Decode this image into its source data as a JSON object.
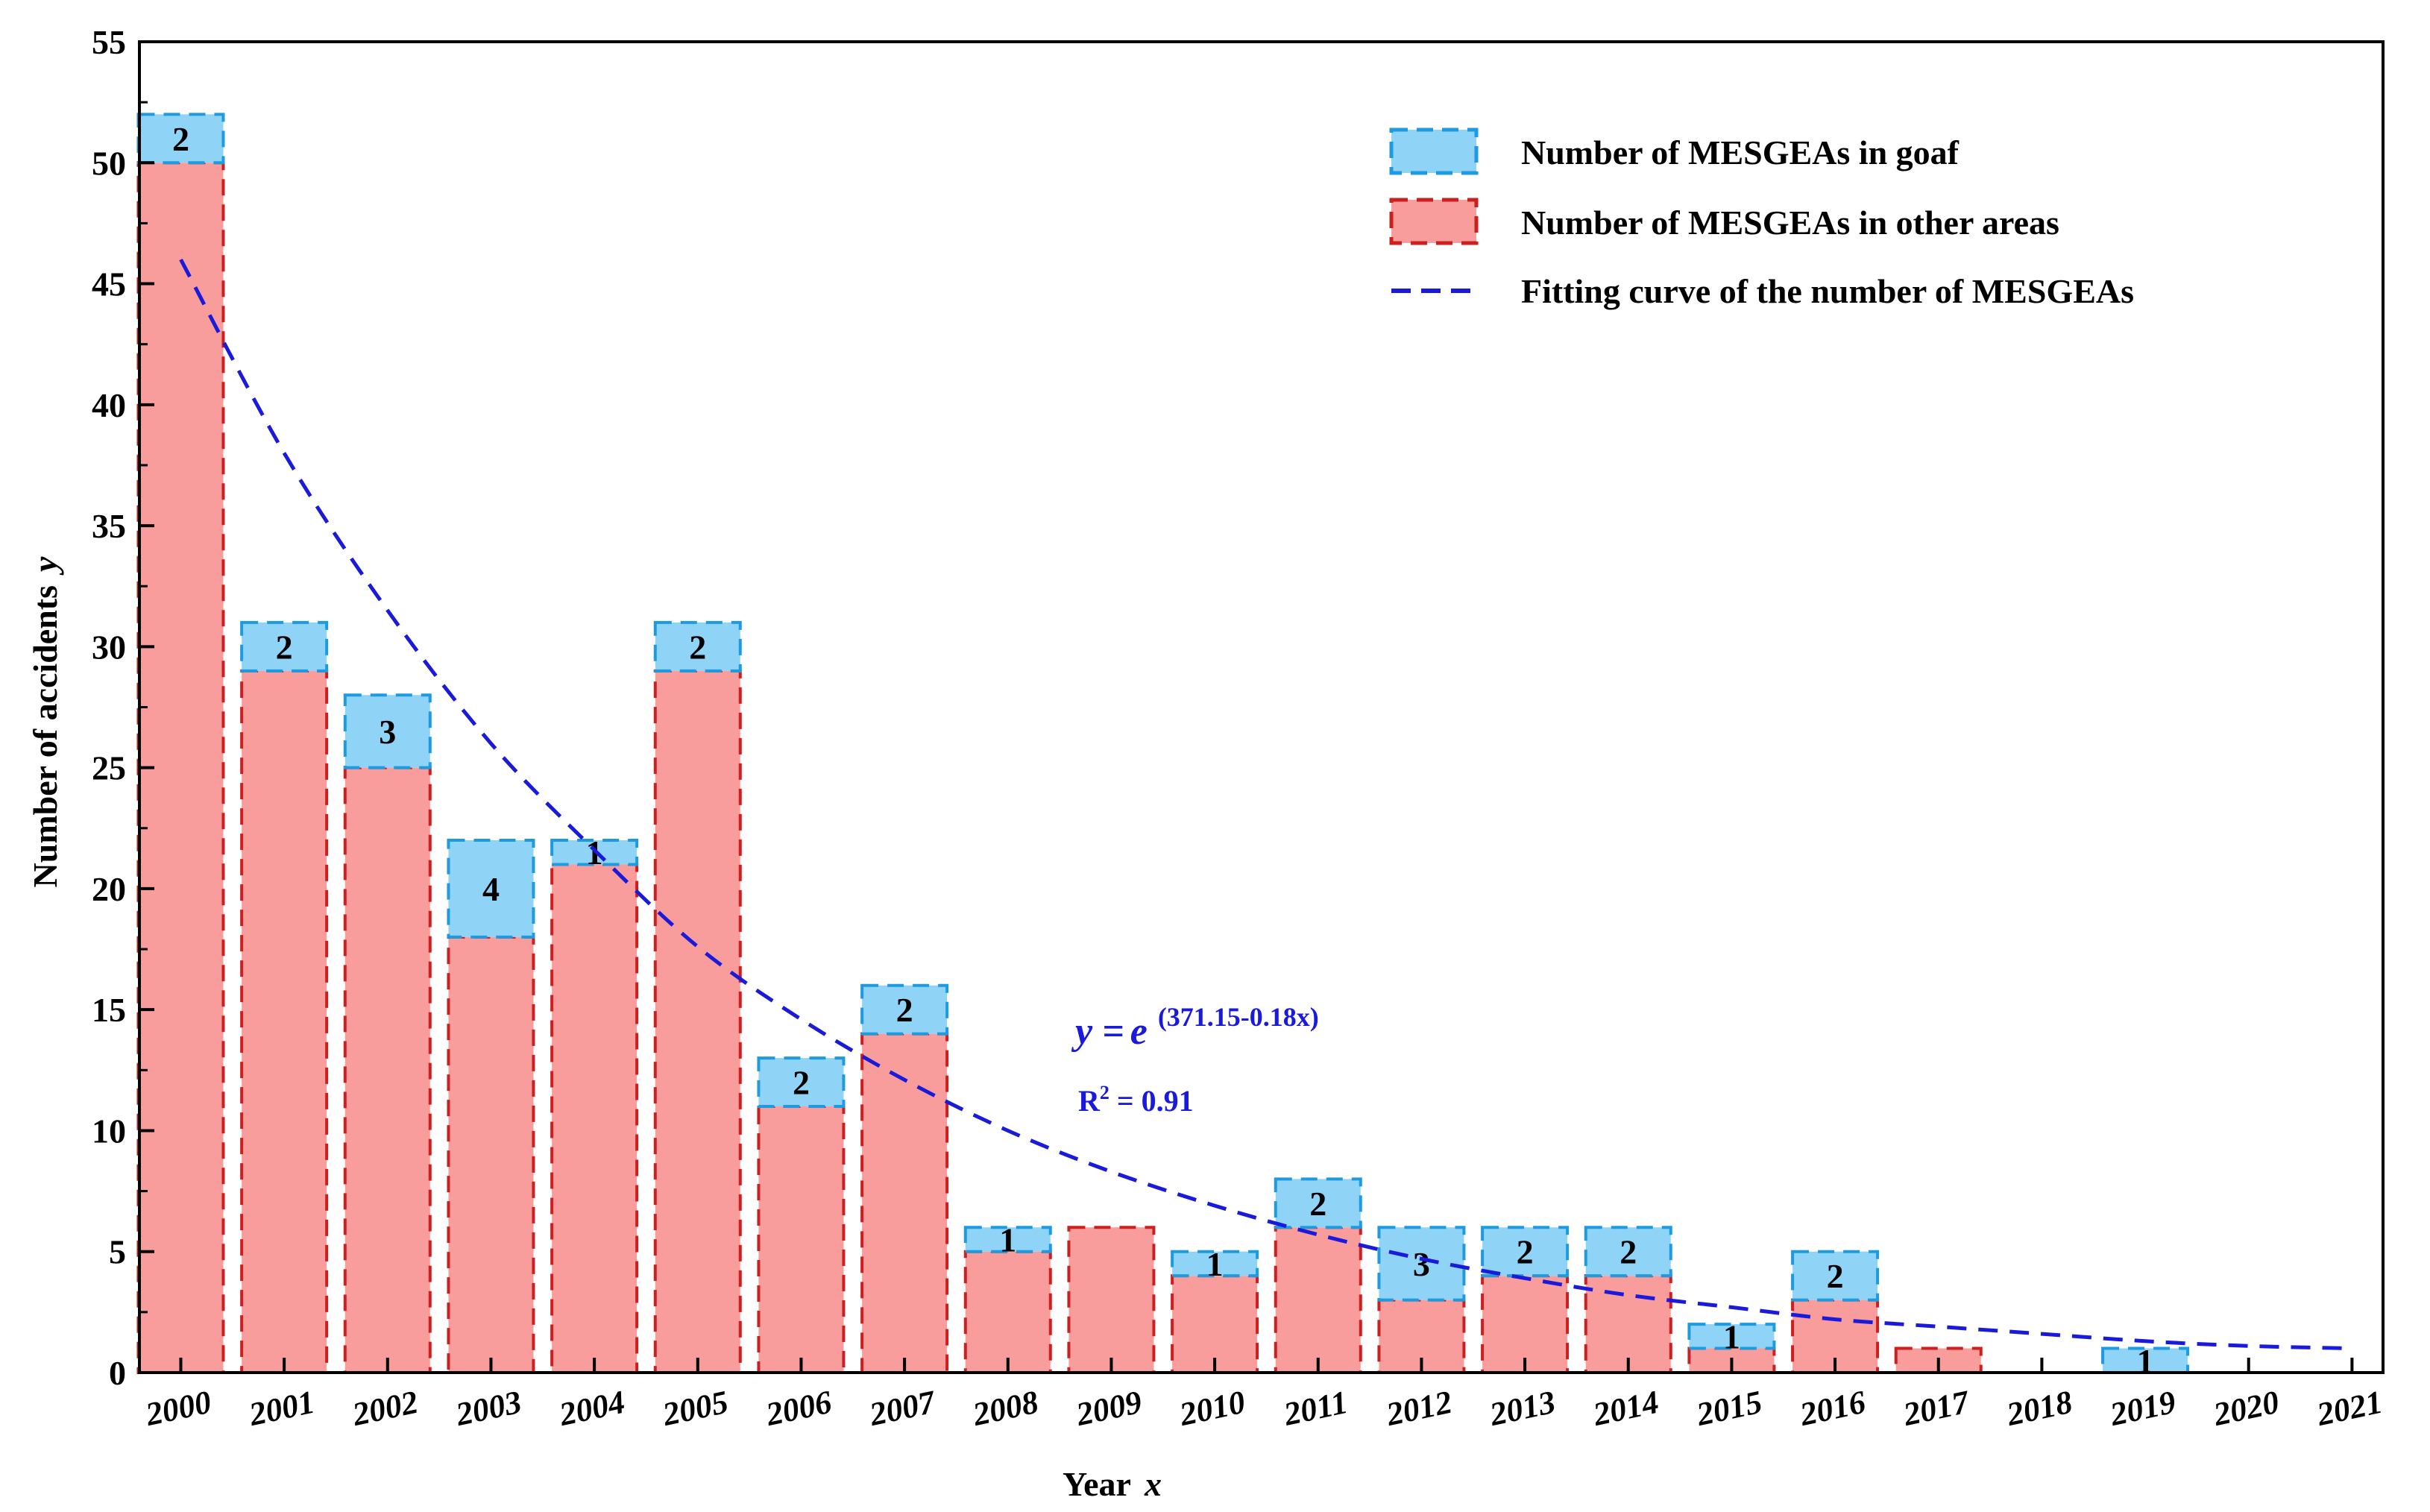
{
  "chart_data": {
    "type": "bar",
    "stacked": true,
    "categories": [
      "2000",
      "2001",
      "2002",
      "2003",
      "2004",
      "2005",
      "2006",
      "2007",
      "2008",
      "2009",
      "2010",
      "2011",
      "2012",
      "2013",
      "2014",
      "2015",
      "2016",
      "2017",
      "2018",
      "2019",
      "2020",
      "2021"
    ],
    "x_tick_labels": [
      "2000",
      "2001",
      "2002",
      "2003",
      "2004",
      "2005",
      "2006",
      "2007",
      "2008",
      "2009",
      "2010",
      "2011",
      "2012",
      "2013",
      "2014",
      "2015",
      "2016",
      "2017",
      "2018",
      "2019",
      "2020",
      "2021"
    ],
    "y_tick_labels": [
      "0",
      "5",
      "10",
      "15",
      "20",
      "25",
      "30",
      "35",
      "40",
      "45",
      "50",
      "55"
    ],
    "series": [
      {
        "name": "Number of MESGEAs in other areas",
        "values": [
          50,
          29,
          25,
          18,
          21,
          29,
          11,
          14,
          5,
          6,
          4,
          6,
          3,
          4,
          4,
          1,
          3,
          1,
          0,
          0,
          0,
          0
        ],
        "fill": "#f99c9c",
        "stroke": "#cc1f1f"
      },
      {
        "name": "Number of MESGEAs in goaf",
        "values": [
          2,
          2,
          3,
          4,
          1,
          2,
          2,
          2,
          1,
          0,
          1,
          2,
          3,
          2,
          2,
          1,
          2,
          0,
          0,
          1,
          0,
          0
        ],
        "labels": [
          "2",
          "2",
          "3",
          "4",
          "1",
          "2",
          "2",
          "2",
          "1",
          "",
          "1",
          "2",
          "3",
          "2",
          "2",
          "1",
          "2",
          "",
          "",
          "1",
          "",
          ""
        ],
        "fill": "#8fd3f7",
        "stroke": "#1e9be0"
      }
    ],
    "fit_curve": {
      "name": "Fitting curve of the number of MESGEAs",
      "x": [
        2000,
        2001,
        2002,
        2003,
        2004,
        2005,
        2006,
        2007,
        2008,
        2009,
        2010,
        2011,
        2012,
        2013,
        2014,
        2015,
        2016,
        2017,
        2018,
        2019,
        2020,
        2021
      ],
      "y": [
        46.0,
        38.0,
        31.5,
        26.0,
        21.6,
        17.6,
        14.6,
        12.1,
        10.0,
        8.3,
        6.9,
        5.7,
        4.7,
        3.9,
        3.2,
        2.7,
        2.2,
        1.9,
        1.6,
        1.3,
        1.1,
        1.0
      ],
      "color": "#1a1adb"
    },
    "xlabel": "Year",
    "xlabel_var": "x",
    "ylabel": "Number of accidents",
    "ylabel_var": "y",
    "ylim": [
      0,
      55
    ],
    "xlim": [
      1999.6,
      2021.3
    ],
    "grid": false,
    "legend_position": "top-right",
    "annotations": {
      "equation_lhs": "y =",
      "equation_base": "e",
      "equation_exp": "(371.15-0.18x)",
      "r2_label": "R",
      "r2_sup": "2",
      "r2_value": " = 0.91"
    }
  }
}
